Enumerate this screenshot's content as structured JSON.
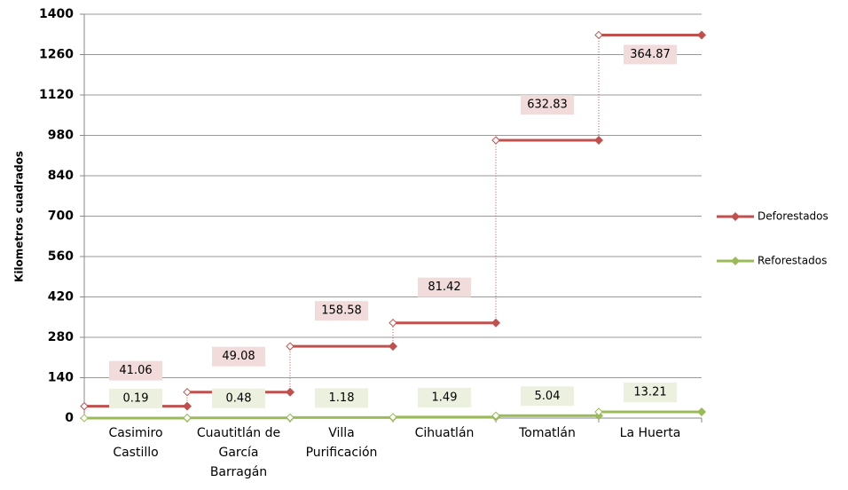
{
  "chart_data": {
    "type": "step",
    "y_label": "Kilometros cuadrados",
    "categories": [
      "Casimiro Castillo",
      "Cuautitlán de García Barragán",
      "Villa Purificación",
      "Cihuatlán",
      "Tomatlán",
      "La Huerta"
    ],
    "series": [
      {
        "name": "Deforestados",
        "color": "#c0504d",
        "label_bg": "#f2dcdb",
        "values": [
          41.06,
          49.08,
          158.58,
          81.42,
          632.83,
          364.87
        ]
      },
      {
        "name": "Reforestados",
        "color": "#9bbb59",
        "label_bg": "#ebf1de",
        "values": [
          0.19,
          0.48,
          1.18,
          1.49,
          5.04,
          13.21
        ]
      }
    ],
    "ylim": [
      0,
      1400
    ],
    "yticks": [
      0,
      140,
      280,
      420,
      560,
      700,
      840,
      980,
      1120,
      1260,
      1400
    ],
    "grid": true,
    "legend": "right"
  }
}
